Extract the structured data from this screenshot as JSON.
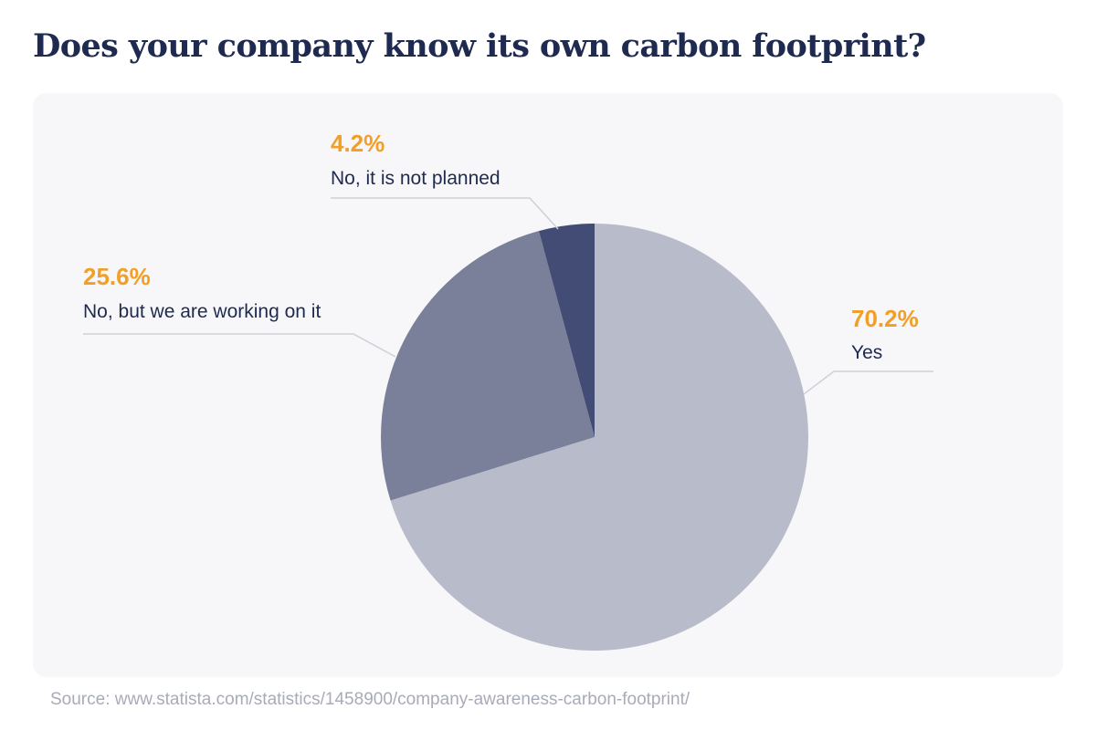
{
  "title": "Does your company know its own carbon footprint?",
  "source": "Source: www.statista.com/statistics/1458900/company-awareness-carbon-footprint/",
  "chart_data": {
    "type": "pie",
    "title": "Does your company know its own carbon footprint?",
    "start_angle_deg": 0,
    "direction": "clockwise",
    "slices": [
      {
        "label": "Yes",
        "value": 70.2,
        "value_label": "70.2%",
        "color": "#b8bbca"
      },
      {
        "label": "No, but we are working on it",
        "value": 25.6,
        "value_label": "25.6%",
        "color": "#7a8099"
      },
      {
        "label": "No, it is not planned",
        "value": 4.2,
        "value_label": "4.2%",
        "color": "#434c75"
      }
    ],
    "value_label_color": "#f29f27",
    "label_color": "#1f2a50",
    "leader_line_color": "#cdd0d8",
    "legend": false
  }
}
